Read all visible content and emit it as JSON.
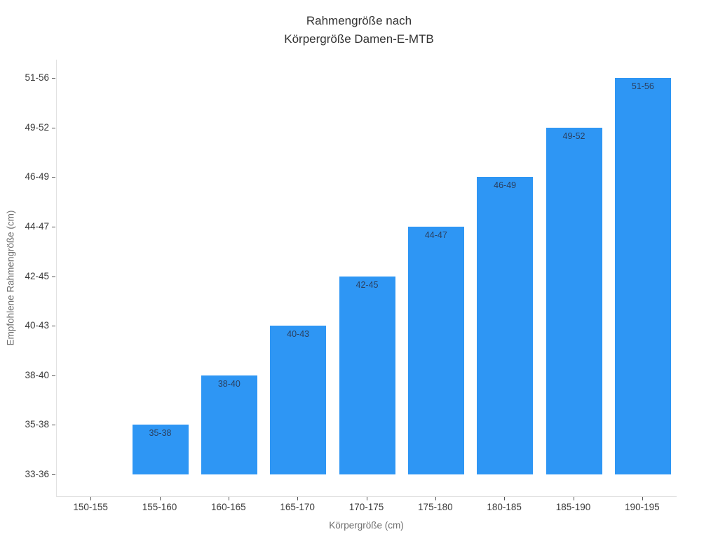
{
  "chart_data": {
    "type": "bar",
    "title": "Rahmengröße nach Körpergröße Damen-E-MTB",
    "title_lines": [
      "Rahmengröße nach",
      "Körpergröße Damen-E-MTB"
    ],
    "xlabel": "Körpergröße (cm)",
    "ylabel": "Empfohlene Rahmengröße (cm)",
    "categories": [
      "150-155",
      "155-160",
      "160-165",
      "165-170",
      "170-175",
      "175-180",
      "180-185",
      "185-190",
      "190-195"
    ],
    "y_tick_labels": [
      "33-36",
      "35-38",
      "38-40",
      "40-43",
      "42-45",
      "44-47",
      "46-49",
      "49-52",
      "51-56"
    ],
    "bars": [
      {
        "category": "150-155",
        "value": null,
        "level": 0
      },
      {
        "category": "155-160",
        "value": "35-38",
        "level": 1
      },
      {
        "category": "160-165",
        "value": "38-40",
        "level": 2
      },
      {
        "category": "165-170",
        "value": "40-43",
        "level": 3
      },
      {
        "category": "170-175",
        "value": "42-45",
        "level": 4
      },
      {
        "category": "175-180",
        "value": "44-47",
        "level": 5
      },
      {
        "category": "180-185",
        "value": "46-49",
        "level": 6
      },
      {
        "category": "185-190",
        "value": "49-52",
        "level": 7
      },
      {
        "category": "190-195",
        "value": "51-56",
        "level": 8
      }
    ],
    "baseline_label": "33-36",
    "grid": false,
    "legend_position": "none",
    "colors": {
      "bar": "#2e96f4",
      "bar_label": "#2a3f5f",
      "axis_line": "#e2e2e2",
      "tick_mark": "#555555",
      "tick_label": "#3a3a3a",
      "axis_title": "#6e6e6e",
      "title": "#333333",
      "background": "#ffffff"
    }
  }
}
